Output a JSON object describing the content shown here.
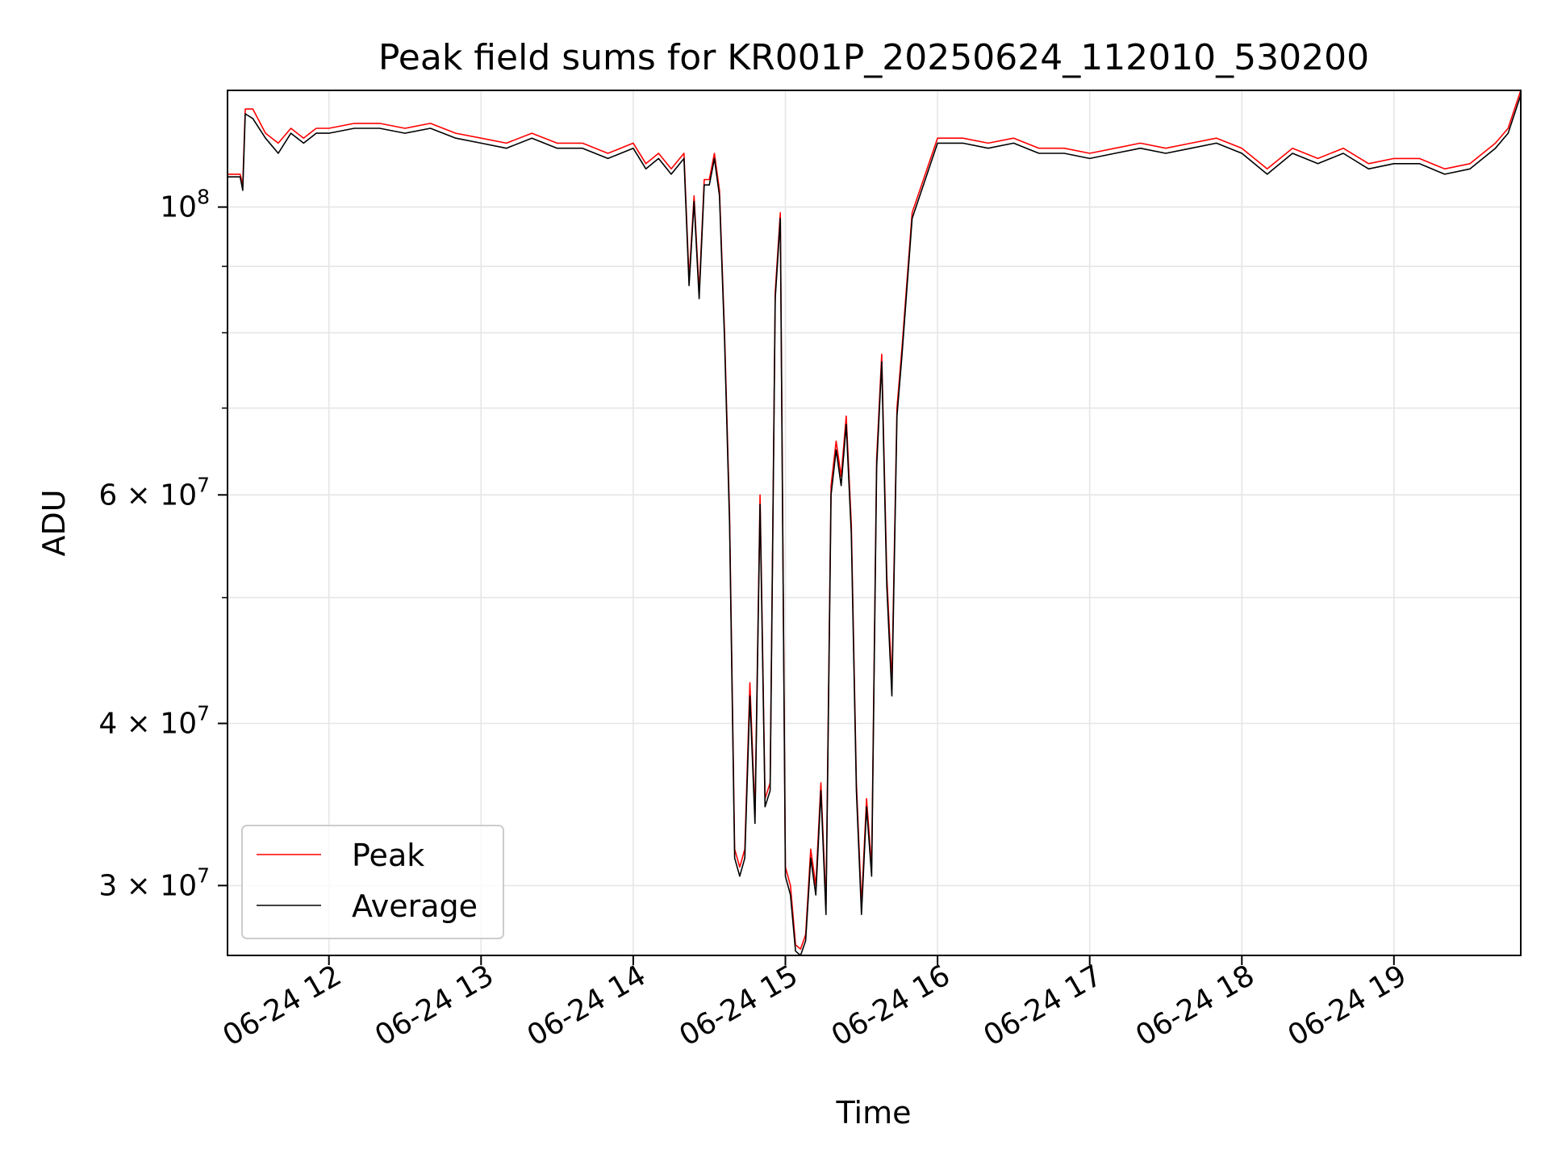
{
  "chart_data": {
    "type": "line",
    "title": "Peak field sums for KR001P_20250624_112010_530200",
    "xlabel": "Time",
    "ylabel": "ADU",
    "x_axis": {
      "type": "datetime",
      "range": [
        "2025-06-24 11:20",
        "2025-06-24 19:50"
      ],
      "ticks": [
        {
          "value": "2025-06-24 12:00",
          "label": "06-24 12"
        },
        {
          "value": "2025-06-24 13:00",
          "label": "06-24 13"
        },
        {
          "value": "2025-06-24 14:00",
          "label": "06-24 14"
        },
        {
          "value": "2025-06-24 15:00",
          "label": "06-24 15"
        },
        {
          "value": "2025-06-24 16:00",
          "label": "06-24 16"
        },
        {
          "value": "2025-06-24 17:00",
          "label": "06-24 17"
        },
        {
          "value": "2025-06-24 18:00",
          "label": "06-24 18"
        },
        {
          "value": "2025-06-24 19:00",
          "label": "06-24 19"
        }
      ]
    },
    "y_axis": {
      "scale": "log",
      "range": [
        26500000,
        123000000
      ],
      "major_ticks": [
        {
          "value": 30000000,
          "mant": "3",
          "exp": "7"
        },
        {
          "value": 40000000,
          "mant": "4",
          "exp": "7"
        },
        {
          "value": 60000000,
          "mant": "6",
          "exp": "7"
        },
        {
          "value": 100000000,
          "mant": "",
          "exp": "8"
        }
      ],
      "minor_ticks": [
        50000000,
        70000000,
        80000000,
        90000000
      ]
    },
    "grid": true,
    "legend": {
      "placement": "lower-left"
    },
    "series": [
      {
        "name": "Peak",
        "color": "#ff0000",
        "x": [
          "2025-06-24 11:20",
          "2025-06-24 11:25",
          "2025-06-24 11:26",
          "2025-06-24 11:27",
          "2025-06-24 11:30",
          "2025-06-24 11:35",
          "2025-06-24 11:40",
          "2025-06-24 11:45",
          "2025-06-24 11:50",
          "2025-06-24 11:55",
          "2025-06-24 12:00",
          "2025-06-24 12:10",
          "2025-06-24 12:20",
          "2025-06-24 12:30",
          "2025-06-24 12:40",
          "2025-06-24 12:50",
          "2025-06-24 13:00",
          "2025-06-24 13:10",
          "2025-06-24 13:20",
          "2025-06-24 13:30",
          "2025-06-24 13:40",
          "2025-06-24 13:50",
          "2025-06-24 14:00",
          "2025-06-24 14:05",
          "2025-06-24 14:10",
          "2025-06-24 14:15",
          "2025-06-24 14:20",
          "2025-06-24 14:22",
          "2025-06-24 14:24",
          "2025-06-24 14:26",
          "2025-06-24 14:28",
          "2025-06-24 14:30",
          "2025-06-24 14:32",
          "2025-06-24 14:34",
          "2025-06-24 14:36",
          "2025-06-24 14:38",
          "2025-06-24 14:40",
          "2025-06-24 14:42",
          "2025-06-24 14:44",
          "2025-06-24 14:46",
          "2025-06-24 14:48",
          "2025-06-24 14:50",
          "2025-06-24 14:52",
          "2025-06-24 14:54",
          "2025-06-24 14:56",
          "2025-06-24 14:58",
          "2025-06-24 15:00",
          "2025-06-24 15:02",
          "2025-06-24 15:04",
          "2025-06-24 15:06",
          "2025-06-24 15:08",
          "2025-06-24 15:10",
          "2025-06-24 15:12",
          "2025-06-24 15:14",
          "2025-06-24 15:16",
          "2025-06-24 15:18",
          "2025-06-24 15:20",
          "2025-06-24 15:22",
          "2025-06-24 15:24",
          "2025-06-24 15:26",
          "2025-06-24 15:28",
          "2025-06-24 15:30",
          "2025-06-24 15:32",
          "2025-06-24 15:34",
          "2025-06-24 15:36",
          "2025-06-24 15:38",
          "2025-06-24 15:40",
          "2025-06-24 15:42",
          "2025-06-24 15:44",
          "2025-06-24 15:46",
          "2025-06-24 15:48",
          "2025-06-24 15:50",
          "2025-06-24 16:00",
          "2025-06-24 16:10",
          "2025-06-24 16:20",
          "2025-06-24 16:30",
          "2025-06-24 16:40",
          "2025-06-24 16:50",
          "2025-06-24 17:00",
          "2025-06-24 17:10",
          "2025-06-24 17:20",
          "2025-06-24 17:30",
          "2025-06-24 17:40",
          "2025-06-24 17:50",
          "2025-06-24 18:00",
          "2025-06-24 18:10",
          "2025-06-24 18:20",
          "2025-06-24 18:30",
          "2025-06-24 18:40",
          "2025-06-24 18:50",
          "2025-06-24 19:00",
          "2025-06-24 19:10",
          "2025-06-24 19:20",
          "2025-06-24 19:30",
          "2025-06-24 19:40",
          "2025-06-24 19:45",
          "2025-06-24 19:50"
        ],
        "values": [
          106000000,
          106000000,
          104000000,
          119000000,
          119000000,
          114000000,
          112000000,
          115000000,
          113000000,
          115000000,
          115000000,
          116000000,
          116000000,
          115000000,
          116000000,
          114000000,
          113000000,
          112000000,
          114000000,
          112000000,
          112000000,
          110000000,
          112000000,
          108000000,
          110000000,
          107000000,
          110000000,
          88000000,
          102000000,
          86000000,
          105000000,
          105000000,
          110000000,
          103000000,
          80000000,
          58000000,
          32000000,
          31000000,
          32000000,
          43000000,
          34000000,
          60000000,
          35000000,
          36000000,
          86000000,
          99000000,
          31000000,
          30000000,
          27000000,
          26800000,
          27500000,
          32000000,
          30000000,
          36000000,
          29000000,
          61000000,
          66000000,
          62000000,
          69000000,
          57000000,
          36000000,
          29000000,
          35000000,
          31000000,
          64000000,
          77000000,
          52000000,
          43000000,
          70000000,
          78000000,
          88000000,
          99000000,
          113000000,
          113000000,
          112000000,
          113000000,
          111000000,
          111000000,
          110000000,
          111000000,
          112000000,
          111000000,
          112000000,
          113000000,
          111000000,
          107000000,
          111000000,
          109000000,
          111000000,
          108000000,
          109000000,
          109000000,
          107000000,
          108000000,
          112000000,
          115000000,
          123000000
        ]
      },
      {
        "name": "Average",
        "color": "#000000",
        "x": [
          "2025-06-24 11:20",
          "2025-06-24 11:25",
          "2025-06-24 11:26",
          "2025-06-24 11:27",
          "2025-06-24 11:30",
          "2025-06-24 11:35",
          "2025-06-24 11:40",
          "2025-06-24 11:45",
          "2025-06-24 11:50",
          "2025-06-24 11:55",
          "2025-06-24 12:00",
          "2025-06-24 12:10",
          "2025-06-24 12:20",
          "2025-06-24 12:30",
          "2025-06-24 12:40",
          "2025-06-24 12:50",
          "2025-06-24 13:00",
          "2025-06-24 13:10",
          "2025-06-24 13:20",
          "2025-06-24 13:30",
          "2025-06-24 13:40",
          "2025-06-24 13:50",
          "2025-06-24 14:00",
          "2025-06-24 14:05",
          "2025-06-24 14:10",
          "2025-06-24 14:15",
          "2025-06-24 14:20",
          "2025-06-24 14:22",
          "2025-06-24 14:24",
          "2025-06-24 14:26",
          "2025-06-24 14:28",
          "2025-06-24 14:30",
          "2025-06-24 14:32",
          "2025-06-24 14:34",
          "2025-06-24 14:36",
          "2025-06-24 14:38",
          "2025-06-24 14:40",
          "2025-06-24 14:42",
          "2025-06-24 14:44",
          "2025-06-24 14:46",
          "2025-06-24 14:48",
          "2025-06-24 14:50",
          "2025-06-24 14:52",
          "2025-06-24 14:54",
          "2025-06-24 14:56",
          "2025-06-24 14:58",
          "2025-06-24 15:00",
          "2025-06-24 15:02",
          "2025-06-24 15:04",
          "2025-06-24 15:06",
          "2025-06-24 15:08",
          "2025-06-24 15:10",
          "2025-06-24 15:12",
          "2025-06-24 15:14",
          "2025-06-24 15:16",
          "2025-06-24 15:18",
          "2025-06-24 15:20",
          "2025-06-24 15:22",
          "2025-06-24 15:24",
          "2025-06-24 15:26",
          "2025-06-24 15:28",
          "2025-06-24 15:30",
          "2025-06-24 15:32",
          "2025-06-24 15:34",
          "2025-06-24 15:36",
          "2025-06-24 15:38",
          "2025-06-24 15:40",
          "2025-06-24 15:42",
          "2025-06-24 15:44",
          "2025-06-24 15:46",
          "2025-06-24 15:48",
          "2025-06-24 15:50",
          "2025-06-24 16:00",
          "2025-06-24 16:10",
          "2025-06-24 16:20",
          "2025-06-24 16:30",
          "2025-06-24 16:40",
          "2025-06-24 16:50",
          "2025-06-24 17:00",
          "2025-06-24 17:10",
          "2025-06-24 17:20",
          "2025-06-24 17:30",
          "2025-06-24 17:40",
          "2025-06-24 17:50",
          "2025-06-24 18:00",
          "2025-06-24 18:10",
          "2025-06-24 18:20",
          "2025-06-24 18:30",
          "2025-06-24 18:40",
          "2025-06-24 18:50",
          "2025-06-24 19:00",
          "2025-06-24 19:10",
          "2025-06-24 19:20",
          "2025-06-24 19:30",
          "2025-06-24 19:40",
          "2025-06-24 19:45",
          "2025-06-24 19:50"
        ],
        "values": [
          105500000,
          105500000,
          103000000,
          118000000,
          117000000,
          113000000,
          110000000,
          114000000,
          112000000,
          114000000,
          114000000,
          115000000,
          115000000,
          114000000,
          115000000,
          113000000,
          112000000,
          111000000,
          113000000,
          111000000,
          111000000,
          109000000,
          111000000,
          107000000,
          109000000,
          106000000,
          109000000,
          87000000,
          101000000,
          85000000,
          104000000,
          104000000,
          109000000,
          102000000,
          79000000,
          57000000,
          31500000,
          30500000,
          31500000,
          42000000,
          33500000,
          59000000,
          34500000,
          35500000,
          85000000,
          98000000,
          30500000,
          29500000,
          26700000,
          26500000,
          27200000,
          31500000,
          29500000,
          35500000,
          28500000,
          60000000,
          65000000,
          61000000,
          68000000,
          56000000,
          35500000,
          28500000,
          34500000,
          30500000,
          63000000,
          76000000,
          51000000,
          42000000,
          69000000,
          77000000,
          87000000,
          98000000,
          112000000,
          112000000,
          111000000,
          112000000,
          110000000,
          110000000,
          109000000,
          110000000,
          111000000,
          110000000,
          111000000,
          112000000,
          110000000,
          106000000,
          110000000,
          108000000,
          110000000,
          107000000,
          108000000,
          108000000,
          106000000,
          107000000,
          111000000,
          114000000,
          122000000
        ]
      }
    ]
  }
}
